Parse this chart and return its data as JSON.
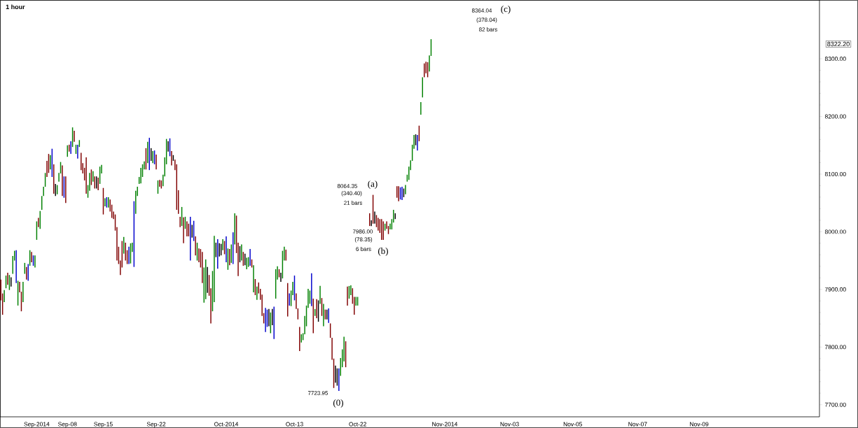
{
  "chart_data": {
    "type": "bar",
    "title": "1 hour",
    "categories": [
      null,
      null,
      null,
      null,
      null,
      null,
      null,
      null,
      null,
      null,
      null,
      null,
      null,
      null,
      null,
      null,
      null,
      null,
      null,
      null,
      null,
      "Sep-2014",
      null,
      null,
      null,
      null,
      null,
      null,
      null,
      null,
      null,
      null,
      null,
      null,
      null,
      null,
      null,
      null,
      null,
      "Sep-08",
      null,
      null,
      null,
      null,
      null,
      null,
      null,
      null,
      null,
      null,
      null,
      null,
      null,
      null,
      null,
      null,
      null,
      null,
      null,
      null,
      "Sep-15",
      null,
      null,
      null,
      null,
      null,
      null,
      null,
      null,
      null,
      null,
      null,
      null,
      null,
      null,
      null,
      null,
      null,
      null,
      null,
      null,
      null,
      null,
      null,
      null,
      null,
      null,
      null,
      null,
      null,
      null,
      "Sep-22",
      null,
      null,
      null,
      null,
      null,
      null,
      null,
      null,
      null,
      null,
      null,
      null,
      null,
      null,
      null,
      null,
      null,
      null,
      null,
      null,
      null,
      null,
      null,
      null,
      null,
      null,
      null,
      null,
      null,
      null,
      null,
      null,
      null,
      null,
      null,
      null,
      null,
      null,
      null,
      null,
      "Oct-2014",
      null,
      null,
      null,
      null,
      null,
      null,
      null,
      null,
      null,
      null,
      null,
      null,
      null,
      null,
      null,
      null,
      null,
      null,
      null,
      null,
      null,
      null,
      null,
      null,
      null,
      null,
      null,
      null,
      null,
      null,
      null,
      null,
      null,
      null,
      null,
      null,
      null,
      null,
      null,
      "Oct-13",
      null,
      null,
      null,
      null,
      null,
      null,
      null,
      null,
      null,
      null,
      null,
      null,
      null,
      null,
      null,
      null,
      null,
      null,
      null,
      null,
      null,
      null,
      null,
      null,
      null,
      null,
      null,
      null,
      null,
      null,
      null,
      null,
      null,
      null,
      null,
      null,
      "Oct-22",
      null,
      null,
      null,
      null,
      null,
      null,
      null,
      null,
      null,
      null,
      null,
      null,
      null,
      null,
      null,
      null,
      null,
      null,
      null,
      null,
      null,
      null,
      null,
      null,
      null,
      null,
      null,
      null,
      null,
      null,
      null,
      null,
      null,
      null,
      null,
      null,
      null,
      null,
      null,
      null,
      null,
      null,
      null,
      null,
      null,
      null,
      null,
      null,
      null,
      null,
      "Nov-2014",
      null,
      null,
      null,
      null,
      null,
      null,
      null,
      null,
      null,
      null,
      null,
      null,
      null,
      null,
      null,
      null,
      null,
      null,
      null,
      null,
      null,
      null,
      null,
      null,
      null,
      null,
      null,
      null,
      null,
      null,
      null,
      null,
      null,
      null,
      null,
      null,
      null,
      "Nov-03",
      null,
      null,
      null,
      null,
      null,
      null,
      null,
      null,
      null,
      null,
      null,
      null,
      null,
      null,
      null,
      null,
      null,
      null,
      null,
      null,
      null,
      null,
      null,
      null,
      null,
      null,
      null,
      null,
      null,
      null,
      null,
      null,
      null,
      null,
      null,
      null,
      "Nov-05",
      null,
      null,
      null,
      null,
      null,
      null,
      null,
      null,
      null,
      null,
      null,
      null,
      null,
      null,
      null,
      null,
      null,
      null,
      null,
      null,
      null,
      null,
      null,
      null,
      null,
      null,
      null,
      null,
      null,
      null,
      null,
      null,
      null,
      null,
      null,
      null,
      null,
      "Nov-07",
      null,
      null,
      null,
      null,
      null,
      null,
      null,
      null,
      null,
      null,
      null,
      null,
      null,
      null,
      null,
      null,
      null,
      null,
      null,
      null,
      null,
      null,
      null,
      null,
      null,
      null,
      null,
      null,
      null,
      null,
      null,
      null,
      null,
      null,
      null,
      "Nov-09",
      null,
      null,
      null,
      null,
      null,
      null,
      null,
      null,
      null,
      null,
      null,
      null,
      null,
      null,
      null,
      null,
      null,
      null,
      null,
      null,
      null,
      null,
      null,
      null,
      null,
      null,
      null,
      null,
      null,
      null,
      null,
      null,
      null,
      null,
      null,
      null,
      null,
      null,
      null,
      null,
      null,
      null,
      null,
      null,
      null,
      null,
      null,
      null,
      null,
      null,
      null,
      null,
      null,
      null,
      null,
      null,
      null,
      null,
      null,
      null,
      null,
      null,
      null,
      null,
      null,
      null,
      null,
      null,
      null,
      null
    ],
    "base": [
      7881,
      7856,
      7878,
      7902,
      7908,
      7899,
      7905,
      7927,
      7950,
      7911,
      7872,
      7895,
      7862,
      7878,
      7927,
      7917,
      7915,
      7941,
      7947,
      7941,
      7938,
      7986,
      8008,
      8005,
      8038,
      8062,
      8078,
      8095,
      8102,
      8108,
      8095,
      8066,
      8062,
      8065,
      8087,
      8101,
      8062,
      8059,
      8050,
      8130,
      8139,
      8135,
      8147,
      8156,
      8135,
      8127,
      8147,
      8107,
      8101,
      8089,
      8066,
      8059,
      8071,
      8081,
      8087,
      8075,
      8075,
      8072,
      8083,
      8101,
      8030,
      8044,
      8042,
      8042,
      8035,
      8024,
      8022,
      8002,
      7950,
      7944,
      7925,
      7938,
      7962,
      7950,
      7944,
      7944,
      7945,
      7965,
      7939,
      8031,
      8062,
      8083,
      8084,
      8095,
      8108,
      8108,
      8119,
      8107,
      8123,
      8119,
      8117,
      8108,
      8066,
      8078,
      8075,
      8079,
      8096,
      8117,
      8139,
      8131,
      8115,
      8123,
      8107,
      8038,
      8031,
      8008,
      8010,
      7980,
      8005,
      7992,
      7992,
      7950,
      7990,
      7984,
      7959,
      7950,
      7947,
      7938,
      7911,
      7877,
      7883,
      7894,
      7889,
      7841,
      7862,
      7878,
      7956,
      7936,
      7957,
      7959,
      7968,
      7961,
      7947,
      7934,
      7942,
      7946,
      7944,
      7978,
      7963,
      7923,
      7947,
      7950,
      7941,
      7942,
      7935,
      7939,
      7941,
      7938,
      7895,
      7890,
      7882,
      7893,
      7882,
      7854,
      7841,
      7826,
      7835,
      7836,
      7824,
      7838,
      7814,
      7884,
      7917,
      7921,
      7913,
      7919,
      7950,
      7950,
      7853,
      7872,
      7871,
      7890,
      7881,
      7866,
      7848,
      7793,
      7808,
      7812,
      7822,
      7836,
      7868,
      7875,
      7871,
      7824,
      7854,
      7850,
      7844,
      7875,
      7854,
      7836,
      7848,
      7848,
      7842,
      7816,
      7778,
      7729,
      7738,
      7733,
      7724,
      7750,
      7765,
      7775,
      7765,
      7872,
      7884,
      7890,
      7875,
      7856,
      7872,
      7872,
      null,
      null,
      null,
      null,
      null,
      null,
      8010,
      8010,
      8014,
      8014,
      8008,
      8002,
      7998,
      7986,
      7986,
      8002,
      8005,
      7996,
      8004,
      8004,
      8016,
      8022,
      8059,
      8053,
      8056,
      8055,
      8060,
      8065,
      8087,
      8090,
      8107,
      8123,
      8144,
      8150,
      8141,
      8157,
      8203,
      8233,
      8268,
      8275,
      8268,
      8278,
      8305,
      null,
      null,
      null,
      null,
      null,
      null,
      null,
      null,
      null,
      null,
      null,
      null,
      null,
      null,
      null,
      null,
      null,
      null,
      null,
      null,
      null,
      null,
      null,
      null,
      null,
      null,
      null,
      null,
      null,
      null,
      null,
      null,
      null,
      null,
      null,
      null,
      null,
      null,
      null,
      null,
      null,
      null,
      null,
      null,
      null,
      null,
      null,
      null,
      null,
      null,
      null,
      null,
      null,
      null,
      null,
      null,
      null,
      null,
      null,
      null,
      null,
      null,
      null,
      null,
      null,
      null,
      null,
      null,
      null,
      null,
      null,
      null,
      null,
      null,
      null,
      null,
      null,
      null,
      null,
      null,
      null,
      null,
      null,
      null,
      null,
      null,
      null,
      null,
      null,
      null,
      null,
      null,
      null,
      null,
      null,
      null,
      null,
      null,
      null,
      null,
      null,
      null,
      null,
      null,
      null,
      null,
      null,
      null,
      null,
      null,
      null,
      null,
      null,
      null,
      null,
      null,
      null,
      null,
      null,
      null,
      null,
      null,
      null,
      null,
      null,
      null,
      null,
      null,
      null,
      null,
      null,
      null,
      null,
      null,
      null,
      null,
      null,
      null,
      null,
      null,
      null,
      null,
      null,
      null,
      null,
      null,
      null,
      null,
      null,
      null,
      null,
      null,
      null,
      null,
      null,
      null,
      null,
      null,
      null,
      null,
      null,
      null,
      null,
      null,
      null,
      null,
      null,
      null,
      null,
      null,
      null,
      null,
      null,
      null,
      null,
      null,
      null,
      null,
      null,
      null,
      null,
      null,
      null,
      null,
      null,
      null,
      null,
      null,
      null,
      null,
      null,
      null,
      null,
      null,
      null,
      null,
      null,
      null,
      null,
      null,
      null,
      null,
      null,
      null,
      null,
      null,
      null,
      null,
      null,
      null,
      null,
      null,
      null,
      null,
      null,
      null,
      null,
      null,
      null,
      null,
      null,
      null,
      null,
      null,
      null,
      null,
      null
    ],
    "values": [
      36,
      37,
      21,
      22,
      21,
      26,
      16,
      31,
      17,
      57,
      43,
      18,
      34,
      35,
      19,
      22,
      29,
      27,
      18,
      18,
      21,
      32,
      16,
      31,
      24,
      16,
      24,
      28,
      33,
      25,
      49,
      51,
      21,
      16,
      15,
      20,
      53,
      37,
      46,
      20,
      12,
      22,
      34,
      19,
      16,
      24,
      12,
      30,
      18,
      22,
      63,
      22,
      31,
      27,
      18,
      21,
      21,
      22,
      30,
      15,
      46,
      14,
      18,
      18,
      21,
      23,
      13,
      28,
      58,
      30,
      25,
      46,
      29,
      31,
      24,
      30,
      35,
      16,
      114,
      40,
      16,
      12,
      27,
      22,
      14,
      37,
      37,
      56,
      22,
      21,
      24,
      26,
      23,
      12,
      14,
      20,
      33,
      44,
      18,
      31,
      25,
      10,
      18,
      79,
      41,
      18,
      33,
      45,
      21,
      26,
      22,
      76,
      22,
      35,
      33,
      31,
      24,
      32,
      54,
      61,
      69,
      45,
      36,
      61,
      70,
      115,
      25,
      51,
      23,
      20,
      19,
      23,
      45,
      37,
      28,
      32,
      55,
      54,
      65,
      58,
      28,
      28,
      24,
      20,
      20,
      17,
      29,
      14,
      47,
      28,
      23,
      19,
      19,
      37,
      18,
      42,
      30,
      30,
      36,
      28,
      56,
      51,
      23,
      14,
      16,
      48,
      24,
      19,
      58,
      21,
      27,
      23,
      43,
      27,
      19,
      42,
      14,
      12,
      32,
      36,
      33,
      23,
      57,
      60,
      12,
      33,
      37,
      31,
      31,
      39,
      17,
      17,
      25,
      25,
      38,
      51,
      30,
      30,
      39,
      31,
      31,
      43,
      45,
      33,
      22,
      17,
      27,
      31,
      15,
      15,
      null,
      null,
      null,
      null,
      null,
      null,
      22,
      10,
      50,
      21,
      21,
      22,
      24,
      36,
      32,
      12,
      13,
      14,
      10,
      18,
      22,
      10,
      20,
      26,
      21,
      23,
      15,
      16,
      12,
      23,
      17,
      28,
      24,
      19,
      27,
      27,
      22,
      35,
      24,
      20,
      26,
      28,
      29,
      null,
      null,
      null,
      null,
      null,
      null,
      null,
      null,
      null,
      null,
      null,
      null,
      null,
      null,
      null,
      null,
      null,
      null,
      null,
      null,
      null,
      null,
      null,
      null,
      null,
      null,
      null,
      null,
      null,
      null,
      null,
      null,
      null,
      null,
      null,
      null,
      null,
      null,
      null,
      null,
      null,
      null,
      null,
      null,
      null,
      null,
      null,
      null,
      null,
      null,
      null,
      null,
      null,
      null,
      null,
      null,
      null,
      null,
      null,
      null,
      null,
      null,
      null,
      null,
      null,
      null,
      null,
      null,
      null,
      null,
      null,
      null,
      null,
      null,
      null,
      null,
      null,
      null,
      null,
      null,
      null,
      null,
      null,
      null,
      null,
      null,
      null,
      null,
      null,
      null,
      null,
      null,
      null,
      null,
      null,
      null,
      null,
      null,
      null,
      null,
      null,
      null,
      null,
      null,
      null,
      null,
      null,
      null,
      null,
      null,
      null,
      null,
      null,
      null,
      null,
      null,
      null,
      null,
      null,
      null,
      null,
      null,
      null,
      null,
      null,
      null,
      null,
      null,
      null,
      null,
      null,
      null,
      null,
      null,
      null,
      null,
      null,
      null,
      null,
      null,
      null,
      null,
      null,
      null,
      null,
      null,
      null,
      null,
      null,
      null,
      null,
      null,
      null,
      null,
      null,
      null,
      null,
      null,
      null,
      null,
      null,
      null,
      null,
      null,
      null,
      null,
      null,
      null,
      null,
      null,
      null,
      null,
      null,
      null,
      null,
      null,
      null,
      null,
      null,
      null,
      null,
      null,
      null,
      null,
      null,
      null,
      null,
      null,
      null,
      null,
      null,
      null,
      null,
      null,
      null,
      null,
      null,
      null,
      null,
      null,
      null,
      null,
      null,
      null,
      null,
      null,
      null,
      null,
      null,
      null,
      null,
      null,
      null,
      null,
      null,
      null,
      null,
      null,
      null,
      null,
      null,
      null,
      null,
      null,
      null,
      null,
      null
    ],
    "colors": [
      "#800000",
      "#800000",
      "#008000",
      "#008000",
      "#800000",
      "#008000",
      "#000000",
      "#008000",
      "#008000",
      "#0000cc",
      "#008000",
      "#800000",
      "#800000",
      "#008000",
      "#008000",
      "#800000",
      "#0000cc",
      "#008000",
      "#800000",
      "#0000cc",
      "#008000",
      "#008000",
      "#800000",
      "#008000",
      "#008000",
      "#008000",
      "#008000",
      "#800000",
      "#800000",
      "#008000",
      "#0000cc",
      "#800000",
      "#000000",
      "#008000",
      "#008000",
      "#008000",
      "#800000",
      "#0000cc",
      "#800000",
      "#008000",
      "#800000",
      "#0000cc",
      "#008000",
      "#800000",
      "#008000",
      "#0000cc",
      "#008000",
      "#800000",
      "#800000",
      "#800000",
      "#800000",
      "#008000",
      "#008000",
      "#800000",
      "#008000",
      "#800000",
      "#000000",
      "#800000",
      "#008000",
      "#008000",
      "#800000",
      "#008000",
      "#0000cc",
      "#008000",
      "#800000",
      "#800000",
      "#800000",
      "#800000",
      "#800000",
      "#800000",
      "#800000",
      "#800000",
      "#008000",
      "#800000",
      "#800000",
      "#0000cc",
      "#008000",
      "#008000",
      "#0000cc",
      "#008000",
      "#008000",
      "#008000",
      "#008000",
      "#008000",
      "#008000",
      "#800000",
      "#008000",
      "#0000cc",
      "#000000",
      "#008000",
      "#0000cc",
      "#800000",
      "#008000",
      "#800000",
      "#800000",
      "#008000",
      "#008000",
      "#008000",
      "#000000",
      "#0000cc",
      "#800000",
      "#000000",
      "#800000",
      "#800000",
      "#800000",
      "#800000",
      "#008000",
      "#800000",
      "#008000",
      "#800000",
      "#800000",
      "#0000cc",
      "#000000",
      "#0000cc",
      "#800000",
      "#008000",
      "#800000",
      "#800000",
      "#800000",
      "#008000",
      "#008000",
      "#000000",
      "#800000",
      "#800000",
      "#008000",
      "#008000",
      "#000000",
      "#0000cc",
      "#000000",
      "#000000",
      "#008000",
      "#800000",
      "#0000cc",
      "#008000",
      "#800000",
      "#008000",
      "#0000cc",
      "#008000",
      "#800000",
      "#800000",
      "#000000",
      "#008000",
      "#800000",
      "#000000",
      "#008000",
      "#008000",
      "#0000cc",
      "#800000",
      "#008000",
      "#800000",
      "#008000",
      "#800000",
      "#800000",
      "#800000",
      "#800000",
      "#0000cc",
      "#0000cc",
      "#000000",
      "#008000",
      "#000000",
      "#0000cc",
      "#008000",
      "#008000",
      "#800000",
      "#000000",
      "#008000",
      "#008000",
      "#800000",
      "#800000",
      "#0000cc",
      "#008000",
      "#008000",
      "#0000cc",
      "#800000",
      "#800000",
      "#800000",
      "#008000",
      "#008000",
      "#008000",
      "#008000",
      "#008000",
      "#008000",
      "#0000cc",
      "#800000",
      "#008000",
      "#800000",
      "#000000",
      "#008000",
      "#800000",
      "#008000",
      "#800000",
      "#000000",
      "#0000cc",
      "#800000",
      "#800000",
      "#800000",
      "#000000",
      "#000000",
      "#0000cc",
      "#008000",
      "#008000",
      "#008000",
      "#800000",
      "#800000",
      "#008000",
      "#008000",
      "#800000",
      "#800000",
      "#008000",
      "#008000",
      null,
      null,
      null,
      null,
      null,
      null,
      "#800000",
      "#000000",
      "#800000",
      "#000000",
      "#800000",
      "#800000",
      "#800000",
      "#800000",
      "#800000",
      "#008000",
      "#800000",
      "#800000",
      "#008000",
      "#008000",
      "#008000",
      "#000000",
      "#800000",
      "#800000",
      "#0000cc",
      "#0000cc",
      "#000000",
      "#008000",
      "#008000",
      "#008000",
      "#008000",
      "#008000",
      "#008000",
      "#000000",
      "#0000cc",
      "#800000",
      "#008000",
      "#008000",
      "#800000",
      "#800000",
      "#800000",
      "#008000",
      "#008000",
      null,
      null,
      null,
      null,
      null,
      null,
      null,
      null,
      null,
      null,
      null,
      null,
      null,
      null,
      null,
      null,
      null,
      null,
      null,
      null,
      null,
      null,
      null,
      null,
      null,
      null,
      null,
      null,
      null,
      null,
      null,
      null,
      null,
      null,
      null,
      null,
      null,
      null,
      null,
      null,
      null,
      null,
      null,
      null,
      null,
      null,
      null,
      null,
      null,
      null,
      null,
      null,
      null,
      null,
      null,
      null,
      null,
      null,
      null,
      null,
      null,
      null,
      null,
      null,
      null,
      null,
      null,
      null,
      null,
      null,
      null,
      null,
      null,
      null,
      null,
      null,
      null,
      null,
      null,
      null,
      null,
      null,
      null,
      null,
      null,
      null,
      null,
      null,
      null,
      null,
      null,
      null,
      null,
      null,
      null,
      null,
      null,
      null,
      null,
      null,
      null,
      null,
      null,
      null,
      null,
      null,
      null,
      null,
      null,
      null,
      null,
      null,
      null,
      null,
      null,
      null,
      null,
      null,
      null,
      null,
      null,
      null,
      null,
      null,
      null,
      null,
      null,
      null,
      null,
      null,
      null,
      null,
      null,
      null,
      null,
      null,
      null,
      null,
      null,
      null,
      null,
      null,
      null,
      null,
      null,
      null,
      null,
      null,
      null,
      null,
      null,
      null,
      null,
      null,
      null,
      null,
      null,
      null,
      null,
      null,
      null,
      null,
      null,
      null,
      null,
      null,
      null,
      null,
      null,
      null,
      null,
      null,
      null,
      null,
      null,
      null,
      null,
      null,
      null,
      null,
      null,
      null,
      null,
      null,
      null,
      null,
      null,
      null,
      null,
      null,
      null,
      null,
      null,
      null,
      null,
      null,
      null,
      null,
      null,
      null,
      null,
      null,
      null,
      null,
      null,
      null,
      null,
      null,
      null,
      null,
      null,
      null,
      null,
      null,
      null,
      null,
      null,
      null,
      null,
      null,
      null,
      null,
      null,
      null,
      null,
      null,
      null
    ],
    "ylim": [
      7679,
      8402
    ],
    "yticks": [
      {
        "value": 7700,
        "label": "7700.00"
      },
      {
        "value": 7800,
        "label": "7800.00"
      },
      {
        "value": 7900,
        "label": "7900.00"
      },
      {
        "value": 8000,
        "label": "8000.00"
      },
      {
        "value": 8100,
        "label": "8100.00"
      },
      {
        "value": 8200,
        "label": "8200.00"
      },
      {
        "value": 8300,
        "label": "8300.00"
      }
    ],
    "annotations": [
      "7723.95",
      "(0)",
      "8064.35",
      "(a)",
      "(340.40)",
      "21 bars",
      "7986.00",
      "(b)",
      "(78.35)",
      "6 bars",
      "8364.04",
      "(c)",
      "(378.04)",
      "82 bars",
      "8322.20"
    ]
  }
}
